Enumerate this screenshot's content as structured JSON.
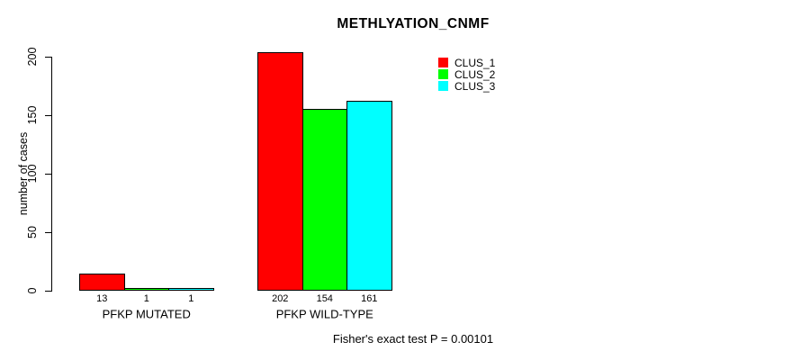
{
  "figure": {
    "title": "METHLYATION_CNMF",
    "footer": "Fisher's exact test P = 0.00101"
  },
  "chart_data": {
    "type": "bar",
    "title": "METHLYATION_CNMF",
    "xlabel": "",
    "ylabel": "number of cases",
    "ylim": [
      0,
      200
    ],
    "yticks": [
      0,
      50,
      100,
      150,
      200
    ],
    "grid": false,
    "categories": [
      "PFKP MUTATED",
      "PFKP WILD-TYPE"
    ],
    "series": [
      {
        "name": "CLUS_1",
        "color": "#ff0000",
        "values": [
          13,
          202
        ]
      },
      {
        "name": "CLUS_2",
        "color": "#00ff00",
        "values": [
          1,
          154
        ]
      },
      {
        "name": "CLUS_3",
        "color": "#00ffff",
        "values": [
          1,
          161
        ]
      }
    ],
    "bar_value_labels": [
      [
        "13",
        "1",
        "1"
      ],
      [
        "202",
        "154",
        "161"
      ]
    ],
    "legend": {
      "position": "top-right-inside",
      "entries": [
        "CLUS_1",
        "CLUS_2",
        "CLUS_3"
      ]
    },
    "annotation": "Fisher's exact test P = 0.00101"
  }
}
